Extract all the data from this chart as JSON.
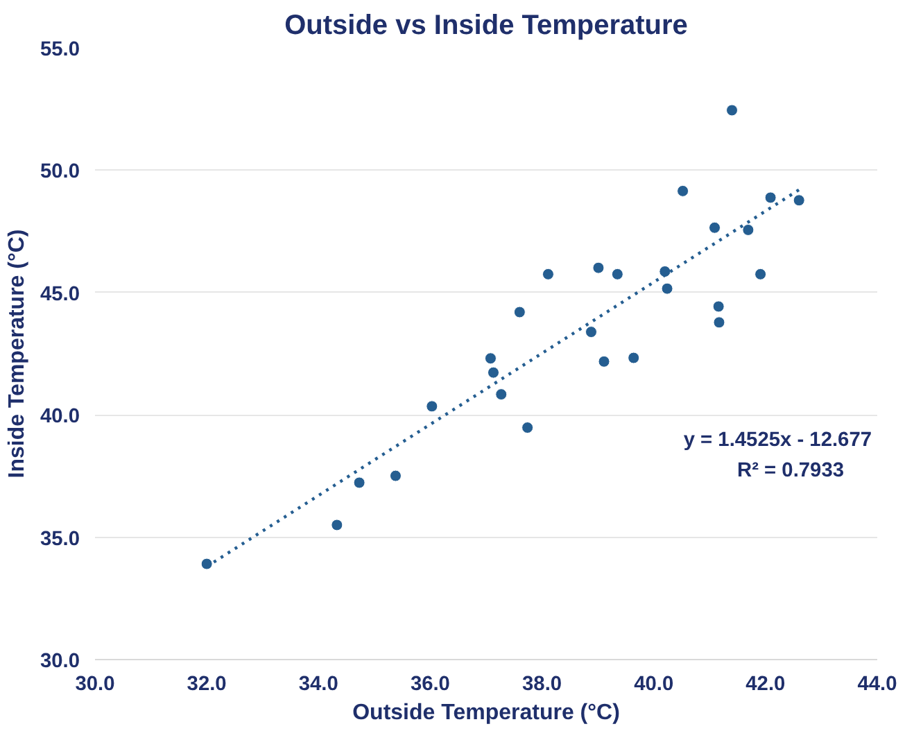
{
  "chart_data": {
    "type": "scatter",
    "title": "Outside vs Inside Temperature",
    "xlabel": "Outside Temperature (°C)",
    "ylabel": "Inside Temperature (°C)",
    "xlim": [
      30,
      44
    ],
    "ylim": [
      30,
      55
    ],
    "xticks": [
      {
        "value": 30,
        "label": "30.0"
      },
      {
        "value": 32,
        "label": "32.0"
      },
      {
        "value": 34,
        "label": "34.0"
      },
      {
        "value": 36,
        "label": "36.0"
      },
      {
        "value": 38,
        "label": "38.0"
      },
      {
        "value": 40,
        "label": "40.0"
      },
      {
        "value": 42,
        "label": "42.0"
      },
      {
        "value": 44,
        "label": "44.0"
      }
    ],
    "yticks": [
      {
        "value": 30,
        "label": "30.0"
      },
      {
        "value": 35,
        "label": "35.0"
      },
      {
        "value": 40,
        "label": "40.0"
      },
      {
        "value": 45,
        "label": "45.0"
      },
      {
        "value": 50,
        "label": "50.0"
      },
      {
        "value": 55,
        "label": "55.0"
      }
    ],
    "grid": "y",
    "marker": "circle",
    "series": [
      {
        "color": "#255e91",
        "x": [
          32.0,
          34.33,
          34.73,
          35.38,
          36.03,
          37.08,
          37.13,
          37.27,
          37.6,
          37.74,
          38.11,
          39.01,
          38.88,
          39.11,
          39.35,
          39.64,
          40.2,
          40.24,
          40.52,
          41.09,
          41.16,
          41.17,
          41.4,
          41.69,
          41.91,
          42.09,
          42.6
        ],
        "values": [
          33.91,
          35.5,
          37.23,
          37.51,
          40.35,
          42.31,
          41.73,
          40.84,
          44.2,
          39.48,
          45.75,
          46.01,
          43.39,
          42.18,
          45.75,
          42.33,
          45.86,
          45.16,
          49.15,
          47.65,
          44.43,
          43.78,
          52.45,
          47.56,
          45.75,
          48.88,
          48.77
        ]
      },
      {
        "type": "line",
        "color": "#255e91",
        "line_style": "dotted",
        "marker": "none",
        "x": [
          32.0,
          42.6
        ],
        "values": [
          33.8,
          49.2
        ]
      }
    ],
    "annotations": [
      "y = 1.4525x - 12.677",
      "R² = 0.7933"
    ]
  }
}
